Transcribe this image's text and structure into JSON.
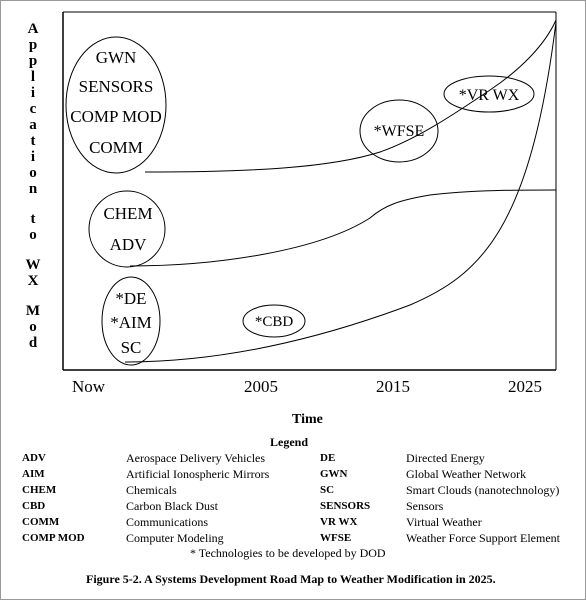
{
  "y_axis_label": "Application to WX Mod",
  "x_axis": {
    "ticks": [
      "Now",
      "2005",
      "2015",
      "2025"
    ],
    "label": "Time"
  },
  "clusters": [
    {
      "id": "cluster-top",
      "items": [
        "GWN",
        "SENSORS",
        "COMP MOD",
        "COMM"
      ]
    },
    {
      "id": "cluster-middle",
      "items": [
        "CHEM",
        "ADV"
      ]
    },
    {
      "id": "cluster-bottom",
      "items": [
        "*DE",
        "*AIM",
        "SC"
      ]
    }
  ],
  "milestones": [
    {
      "id": "wfse",
      "label": "*WFSE"
    },
    {
      "id": "vrwx",
      "label": "*VR WX"
    },
    {
      "id": "cbd",
      "label": "*CBD"
    }
  ],
  "legend": {
    "title": "Legend",
    "left": [
      {
        "abbr": "ADV",
        "def": "Aerospace Delivery Vehicles"
      },
      {
        "abbr": "AIM",
        "def": "Artificial Ionospheric Mirrors"
      },
      {
        "abbr": "CHEM",
        "def": "Chemicals"
      },
      {
        "abbr": "CBD",
        "def": "Carbon Black Dust"
      },
      {
        "abbr": "COMM",
        "def": "Communications"
      },
      {
        "abbr": "COMP MOD",
        "def": "Computer Modeling"
      }
    ],
    "right": [
      {
        "abbr": "DE",
        "def": "Directed Energy"
      },
      {
        "abbr": "GWN",
        "def": "Global Weather Network"
      },
      {
        "abbr": "SC",
        "def": "Smart Clouds (nanotechnology)"
      },
      {
        "abbr": "SENSORS",
        "def": "Sensors"
      },
      {
        "abbr": "VR WX",
        "def": "Virtual Weather"
      },
      {
        "abbr": "WFSE",
        "def": "Weather Force Support Element"
      }
    ]
  },
  "footnote": "*  Technologies to be developed by DOD",
  "caption": "Figure 5-2.  A Systems Development Road Map to Weather Modification in 2025."
}
